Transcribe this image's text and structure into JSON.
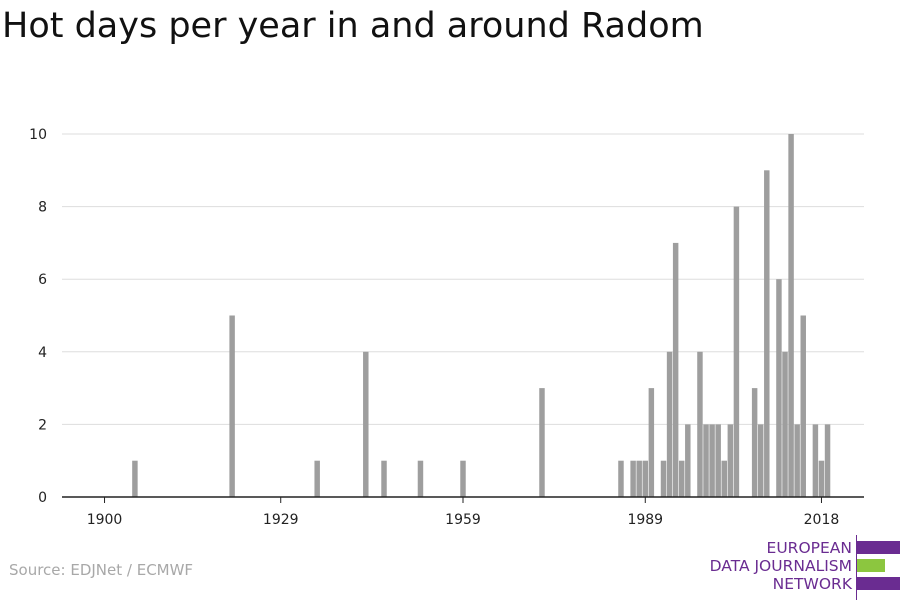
{
  "title": "Hot days per year in and around Radom",
  "source": "Source: EDJNet / ECMWF",
  "logo": {
    "lines": [
      "EUROPEAN",
      "DATA JOURNALISM",
      "NETWORK"
    ],
    "colors": {
      "purple": "#6a2c91",
      "green": "#8cc63f"
    }
  },
  "colors": {
    "bar": "#9e9e9e",
    "grid": "#dddddd",
    "axis": "#222222"
  },
  "chart_data": {
    "type": "bar",
    "title": "Hot days per year in and around Radom",
    "xlabel": "",
    "ylabel": "",
    "xlim": [
      1893,
      2025
    ],
    "ylim": [
      0,
      10
    ],
    "x_ticks": [
      1900,
      1929,
      1959,
      1989,
      2018
    ],
    "y_ticks": [
      0,
      2,
      4,
      6,
      8,
      10
    ],
    "grid": true,
    "x": [
      1905,
      1921,
      1935,
      1943,
      1946,
      1952,
      1959,
      1972,
      1985,
      1987,
      1988,
      1989,
      1990,
      1992,
      1993,
      1994,
      1995,
      1996,
      1998,
      1999,
      2000,
      2001,
      2002,
      2003,
      2004,
      2007,
      2008,
      2009,
      2011,
      2012,
      2013,
      2014,
      2015,
      2017,
      2018,
      2019
    ],
    "values": [
      1,
      5,
      1,
      4,
      1,
      1,
      1,
      3,
      1,
      1,
      1,
      1,
      3,
      1,
      4,
      7,
      1,
      2,
      4,
      2,
      2,
      2,
      1,
      2,
      8,
      3,
      2,
      9,
      6,
      4,
      10,
      2,
      5,
      2,
      1,
      2
    ]
  }
}
